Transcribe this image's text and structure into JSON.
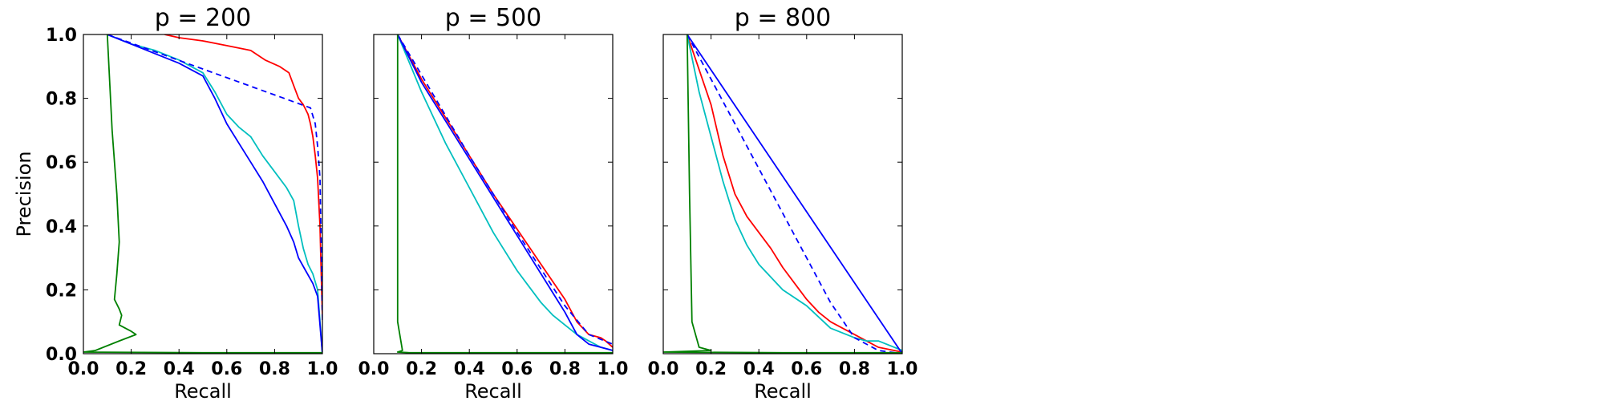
{
  "chart_data": [
    {
      "type": "line",
      "title": "p = 200",
      "xlabel": "Recall",
      "ylabel": "Precision",
      "xlim": [
        0.0,
        1.0
      ],
      "ylim": [
        0.0,
        1.0
      ],
      "xticks": [
        "0.0",
        "0.2",
        "0.4",
        "0.6",
        "0.8",
        "1.0"
      ],
      "yticks": [
        "0.0",
        "0.2",
        "0.4",
        "0.6",
        "0.8",
        "1.0"
      ],
      "series": [
        {
          "color": "#ff0000",
          "dashed": false,
          "points": [
            [
              0.34,
              1.0
            ],
            [
              0.4,
              0.99
            ],
            [
              0.5,
              0.98
            ],
            [
              0.6,
              0.965
            ],
            [
              0.7,
              0.95
            ],
            [
              0.76,
              0.92
            ],
            [
              0.82,
              0.9
            ],
            [
              0.86,
              0.88
            ],
            [
              0.88,
              0.84
            ],
            [
              0.9,
              0.8
            ],
            [
              0.92,
              0.78
            ],
            [
              0.94,
              0.75
            ],
            [
              0.95,
              0.72
            ],
            [
              0.96,
              0.68
            ],
            [
              0.97,
              0.62
            ],
            [
              0.98,
              0.55
            ],
            [
              0.99,
              0.4
            ],
            [
              0.995,
              0.25
            ],
            [
              1.0,
              0.12
            ]
          ]
        },
        {
          "color": "#00bfbf",
          "dashed": false,
          "points": [
            [
              0.1,
              1.0
            ],
            [
              0.2,
              0.97
            ],
            [
              0.3,
              0.95
            ],
            [
              0.4,
              0.92
            ],
            [
              0.5,
              0.88
            ],
            [
              0.55,
              0.82
            ],
            [
              0.6,
              0.75
            ],
            [
              0.65,
              0.71
            ],
            [
              0.7,
              0.68
            ],
            [
              0.75,
              0.62
            ],
            [
              0.8,
              0.57
            ],
            [
              0.85,
              0.52
            ],
            [
              0.88,
              0.48
            ],
            [
              0.9,
              0.4
            ],
            [
              0.92,
              0.33
            ],
            [
              0.94,
              0.28
            ],
            [
              0.96,
              0.25
            ],
            [
              0.98,
              0.2
            ],
            [
              1.0,
              0.0
            ]
          ]
        },
        {
          "color": "#0000ff",
          "dashed": false,
          "points": [
            [
              0.1,
              1.0
            ],
            [
              0.2,
              0.97
            ],
            [
              0.3,
              0.94
            ],
            [
              0.4,
              0.91
            ],
            [
              0.5,
              0.87
            ],
            [
              0.55,
              0.8
            ],
            [
              0.6,
              0.72
            ],
            [
              0.65,
              0.66
            ],
            [
              0.7,
              0.6
            ],
            [
              0.75,
              0.54
            ],
            [
              0.8,
              0.47
            ],
            [
              0.85,
              0.4
            ],
            [
              0.88,
              0.35
            ],
            [
              0.9,
              0.3
            ],
            [
              0.93,
              0.26
            ],
            [
              0.96,
              0.22
            ],
            [
              0.98,
              0.18
            ],
            [
              1.0,
              0.0
            ]
          ]
        },
        {
          "color": "#0000ff",
          "dashed": true,
          "points": [
            [
              0.1,
              1.0
            ],
            [
              0.95,
              0.77
            ],
            [
              0.97,
              0.72
            ],
            [
              0.98,
              0.65
            ],
            [
              0.99,
              0.55
            ],
            [
              1.0,
              0.1
            ]
          ]
        },
        {
          "color": "#008000",
          "dashed": false,
          "points": [
            [
              0.1,
              1.0
            ],
            [
              0.12,
              0.7
            ],
            [
              0.14,
              0.5
            ],
            [
              0.15,
              0.35
            ],
            [
              0.14,
              0.25
            ],
            [
              0.13,
              0.17
            ],
            [
              0.15,
              0.14
            ],
            [
              0.16,
              0.12
            ],
            [
              0.15,
              0.09
            ],
            [
              0.2,
              0.07
            ],
            [
              0.22,
              0.06
            ],
            [
              0.15,
              0.04
            ],
            [
              0.05,
              0.01
            ],
            [
              0.0,
              0.005
            ],
            [
              0.5,
              0.003
            ],
            [
              1.0,
              0.003
            ]
          ]
        }
      ]
    },
    {
      "type": "line",
      "title": "p = 500",
      "xlabel": "Recall",
      "ylabel": "",
      "xlim": [
        0.0,
        1.0
      ],
      "ylim": [
        0.0,
        1.0
      ],
      "xticks": [
        "0.0",
        "0.2",
        "0.4",
        "0.6",
        "0.8",
        "1.0"
      ],
      "yticks": [],
      "series": [
        {
          "color": "#ff0000",
          "dashed": false,
          "points": [
            [
              0.1,
              1.0
            ],
            [
              0.2,
              0.86
            ],
            [
              0.3,
              0.74
            ],
            [
              0.4,
              0.62
            ],
            [
              0.5,
              0.5
            ],
            [
              0.6,
              0.39
            ],
            [
              0.7,
              0.28
            ],
            [
              0.8,
              0.17
            ],
            [
              0.85,
              0.1
            ],
            [
              0.9,
              0.06
            ],
            [
              0.95,
              0.05
            ],
            [
              0.97,
              0.04
            ],
            [
              1.0,
              0.02
            ]
          ]
        },
        {
          "color": "#00bfbf",
          "dashed": false,
          "points": [
            [
              0.1,
              1.0
            ],
            [
              0.2,
              0.82
            ],
            [
              0.3,
              0.66
            ],
            [
              0.4,
              0.52
            ],
            [
              0.5,
              0.38
            ],
            [
              0.6,
              0.26
            ],
            [
              0.65,
              0.21
            ],
            [
              0.7,
              0.16
            ],
            [
              0.75,
              0.12
            ],
            [
              0.8,
              0.09
            ],
            [
              0.85,
              0.06
            ],
            [
              0.9,
              0.04
            ],
            [
              0.95,
              0.02
            ],
            [
              1.0,
              0.01
            ]
          ]
        },
        {
          "color": "#0000ff",
          "dashed": false,
          "points": [
            [
              0.1,
              1.0
            ],
            [
              0.2,
              0.85
            ],
            [
              0.3,
              0.73
            ],
            [
              0.4,
              0.61
            ],
            [
              0.5,
              0.49
            ],
            [
              0.6,
              0.37
            ],
            [
              0.7,
              0.25
            ],
            [
              0.8,
              0.13
            ],
            [
              0.85,
              0.06
            ],
            [
              0.9,
              0.03
            ],
            [
              0.95,
              0.02
            ],
            [
              1.0,
              0.01
            ]
          ]
        },
        {
          "color": "#0000ff",
          "dashed": true,
          "points": [
            [
              0.1,
              1.0
            ],
            [
              0.4,
              0.62
            ],
            [
              0.6,
              0.38
            ],
            [
              0.8,
              0.15
            ],
            [
              0.9,
              0.06
            ],
            [
              1.0,
              0.03
            ]
          ]
        },
        {
          "color": "#008000",
          "dashed": false,
          "points": [
            [
              0.1,
              1.0
            ],
            [
              0.1,
              0.5
            ],
            [
              0.1,
              0.1
            ],
            [
              0.12,
              0.01
            ],
            [
              0.1,
              0.005
            ],
            [
              0.15,
              0.003
            ],
            [
              1.0,
              0.003
            ]
          ]
        }
      ]
    },
    {
      "type": "line",
      "title": "p = 800",
      "xlabel": "Recall",
      "ylabel": "",
      "xlim": [
        0.0,
        1.0
      ],
      "ylim": [
        0.0,
        1.0
      ],
      "xticks": [
        "0.0",
        "0.2",
        "0.4",
        "0.6",
        "0.8",
        "1.0"
      ],
      "yticks": [],
      "series": [
        {
          "color": "#ff0000",
          "dashed": false,
          "points": [
            [
              0.1,
              1.0
            ],
            [
              0.2,
              0.78
            ],
            [
              0.25,
              0.62
            ],
            [
              0.3,
              0.5
            ],
            [
              0.35,
              0.43
            ],
            [
              0.4,
              0.38
            ],
            [
              0.45,
              0.33
            ],
            [
              0.5,
              0.27
            ],
            [
              0.55,
              0.22
            ],
            [
              0.6,
              0.17
            ],
            [
              0.65,
              0.13
            ],
            [
              0.7,
              0.1
            ],
            [
              0.75,
              0.08
            ],
            [
              0.8,
              0.06
            ],
            [
              0.85,
              0.04
            ],
            [
              0.9,
              0.02
            ],
            [
              1.0,
              0.005
            ]
          ]
        },
        {
          "color": "#00bfbf",
          "dashed": false,
          "points": [
            [
              0.1,
              1.0
            ],
            [
              0.15,
              0.82
            ],
            [
              0.2,
              0.68
            ],
            [
              0.25,
              0.54
            ],
            [
              0.3,
              0.42
            ],
            [
              0.35,
              0.34
            ],
            [
              0.4,
              0.28
            ],
            [
              0.5,
              0.2
            ],
            [
              0.6,
              0.15
            ],
            [
              0.7,
              0.08
            ],
            [
              0.8,
              0.05
            ],
            [
              0.85,
              0.04
            ],
            [
              0.9,
              0.04
            ],
            [
              1.0,
              0.01
            ]
          ]
        },
        {
          "color": "#0000ff",
          "dashed": false,
          "points": [
            [
              0.1,
              1.0
            ],
            [
              1.0,
              0.0
            ]
          ]
        },
        {
          "color": "#0000ff",
          "dashed": true,
          "points": [
            [
              0.1,
              1.0
            ],
            [
              0.2,
              0.86
            ],
            [
              0.3,
              0.72
            ],
            [
              0.4,
              0.58
            ],
            [
              0.5,
              0.44
            ],
            [
              0.6,
              0.3
            ],
            [
              0.7,
              0.16
            ],
            [
              0.8,
              0.05
            ],
            [
              0.9,
              0.01
            ],
            [
              1.0,
              0.0
            ]
          ]
        },
        {
          "color": "#008000",
          "dashed": false,
          "points": [
            [
              0.1,
              1.0
            ],
            [
              0.11,
              0.5
            ],
            [
              0.12,
              0.1
            ],
            [
              0.15,
              0.02
            ],
            [
              0.2,
              0.01
            ],
            [
              0.0,
              0.005
            ],
            [
              0.5,
              0.003
            ],
            [
              1.0,
              0.003
            ]
          ]
        }
      ]
    }
  ]
}
